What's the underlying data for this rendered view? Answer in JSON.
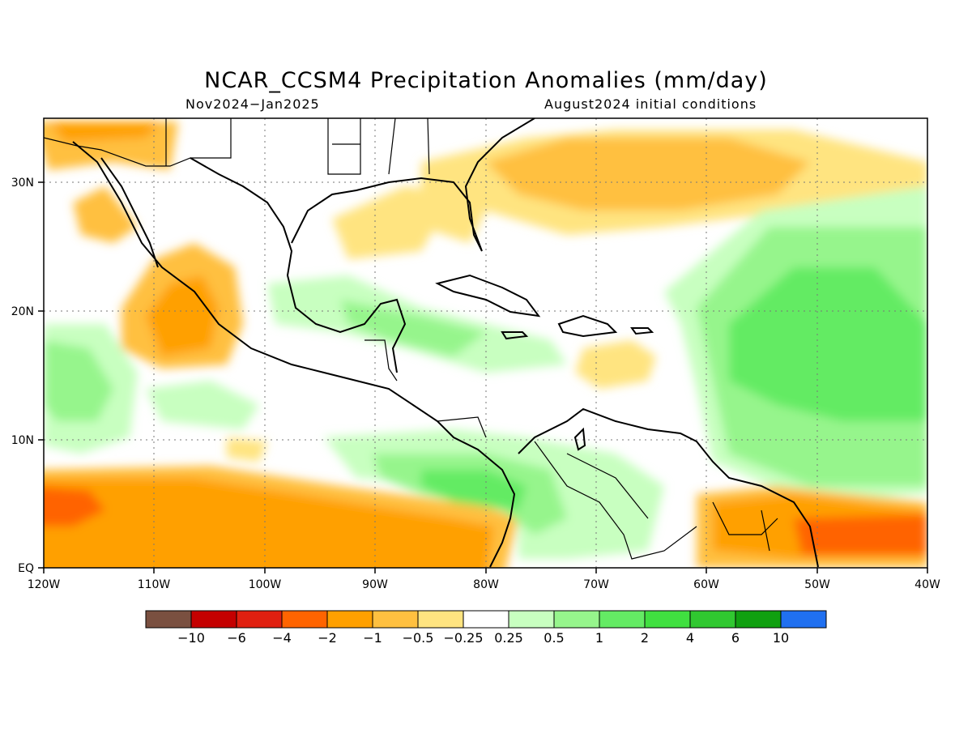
{
  "title": "NCAR_CCSM4 Precipitation Anomalies (mm/day)",
  "subtitle_left": "Nov2024−Jan2025",
  "subtitle_right": "August2024 initial conditions",
  "lon_labels": [
    "120W",
    "110W",
    "100W",
    "90W",
    "80W",
    "70W",
    "60W",
    "50W",
    "40W"
  ],
  "lat_labels": [
    "EQ",
    "10N",
    "20N",
    "30N"
  ],
  "colorbar": {
    "colors": [
      "#7a5040",
      "#c40000",
      "#e02010",
      "#ff6400",
      "#ffa000",
      "#ffc040",
      "#ffe480",
      "#ffffff",
      "#c8ffc0",
      "#96f58c",
      "#64eb64",
      "#40e040",
      "#30c830",
      "#10a010",
      "#2070f0"
    ],
    "labels": [
      "−10",
      "−6",
      "−4",
      "−2",
      "−1",
      "−0.5",
      "−0.25",
      "0.25",
      "0.5",
      "1",
      "2",
      "4",
      "6",
      "10"
    ]
  },
  "map_extent": {
    "lon_min": -120,
    "lon_max": -40,
    "lat_min": 0,
    "lat_max": 35
  }
}
